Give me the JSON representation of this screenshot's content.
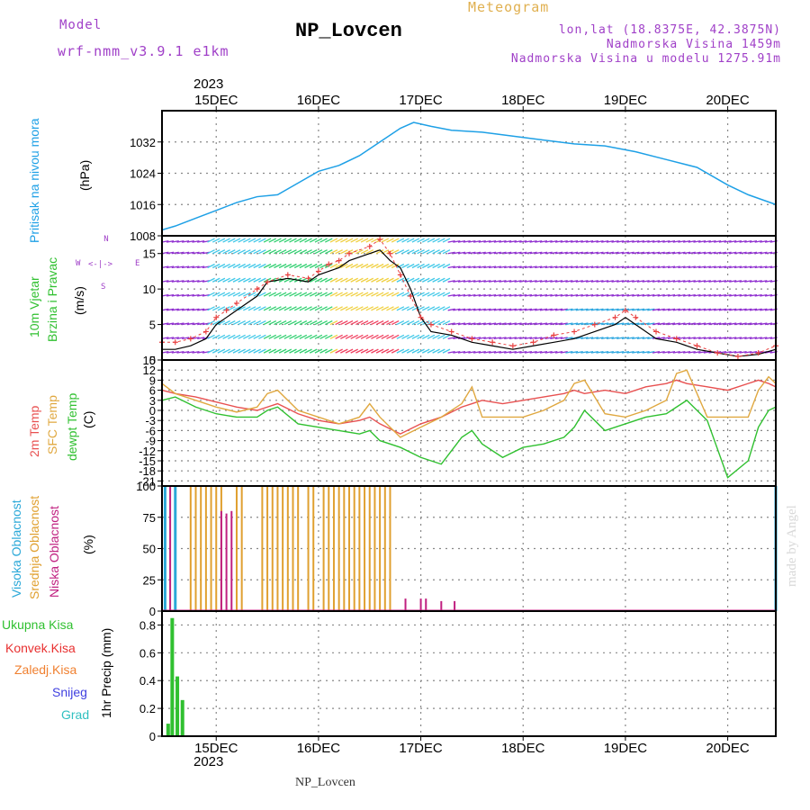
{
  "header": {
    "model_label": "Model",
    "model_name": "wrf-nmm_v3.9.1 e1km",
    "station": "NP_Lovcen",
    "product": "Meteogram",
    "coords": "lon,lat (18.8375E, 42.3875N)",
    "elevation": "Nadmorska Visina 1459m",
    "model_elevation": "Nadmorska Visina u modelu 1275.91m",
    "year_top": "2023",
    "year_bottom": "2023",
    "footer_station": "NP_Lovcen",
    "credit": "made by Angel"
  },
  "labels": {
    "p1_a": "Pritisak na nivou mora",
    "p1_b": "(hPa)",
    "p2_a": "10m Vjetar",
    "p2_b": "Brzina i Pravac",
    "p2_c": "(m/s)",
    "p2_compass_n": "N",
    "p2_compass_s": "S",
    "p2_compass_w": "W",
    "p2_compass_e": "E",
    "p2_compass_mid": "<-|->",
    "p3_a": "2m Temp",
    "p3_b": "SFC Temp",
    "p3_c": "dewpt Temp",
    "p3_d": "(C)",
    "p4_a": "Visoka Oblacnost",
    "p4_b": "Srednja Oblacnost",
    "p4_c": "Niska Oblacnost",
    "p4_d": "(%)",
    "p5_unit": "1hr Precip (mm)",
    "p5_leg1": "Ukupna Kisa",
    "p5_leg2": "Konvek.Kisa",
    "p5_leg3": "Zaledj.Kisa",
    "p5_leg4": "Snijeg",
    "p5_leg5": "Grad"
  },
  "colors": {
    "pressure": "#1ea0e6",
    "temp2m": "#e85050",
    "sfc": "#e0a840",
    "dewpt": "#30c030",
    "high_cloud": "#2aa8d8",
    "mid_cloud": "#e0a030",
    "low_cloud": "#c02080",
    "precip_total": "#30c030",
    "precip_conv": "#e83030",
    "precip_frz": "#f08030",
    "snow": "#4040e0",
    "hail": "#30c0c0",
    "wind_speed": "#000000",
    "gust": "#e84040"
  },
  "chart_data": [
    {
      "type": "line",
      "name": "Sea level pressure",
      "x": [
        14.47,
        14.6,
        14.8,
        15.0,
        15.2,
        15.4,
        15.6,
        15.8,
        16.0,
        16.2,
        16.4,
        16.6,
        16.8,
        16.93,
        17.1,
        17.3,
        17.6,
        17.9,
        18.2,
        18.5,
        18.8,
        19.1,
        19.4,
        19.7,
        20.0,
        20.2,
        20.47
      ],
      "values": [
        1009.5,
        1010.5,
        1012.5,
        1014.5,
        1016.5,
        1018,
        1018.5,
        1021.5,
        1024.5,
        1026,
        1028.5,
        1032,
        1035.5,
        1037,
        1036,
        1035,
        1034.5,
        1033.5,
        1032.5,
        1031.5,
        1031,
        1029.5,
        1027.5,
        1025.5,
        1021,
        1018.5,
        1016
      ],
      "y_ticks": [
        "1008",
        "1016",
        "1024",
        "1032"
      ],
      "ylim": [
        1008,
        1040
      ]
    },
    {
      "type": "line",
      "name": "10m wind",
      "y_ticks": [
        "0",
        "5",
        "10",
        "15"
      ],
      "ylim": [
        0,
        17.5
      ],
      "series": [
        {
          "x": [
            14.47,
            14.6,
            14.75,
            14.9,
            15.0,
            15.1,
            15.2,
            15.4,
            15.5,
            15.7,
            15.9,
            16.0,
            16.1,
            16.2,
            16.3,
            16.5,
            16.6,
            16.7,
            16.8,
            16.9,
            17.0,
            17.1,
            17.3,
            17.5,
            17.7,
            17.9,
            18.1,
            18.3,
            18.5,
            18.7,
            18.9,
            19.0,
            19.1,
            19.3,
            19.5,
            19.7,
            19.9,
            20.1,
            20.3,
            20.47
          ],
          "values": [
            1.5,
            1.5,
            2,
            3,
            5,
            6,
            7,
            9,
            11,
            11.5,
            11,
            12,
            12.5,
            13,
            14,
            15,
            15.5,
            14,
            13,
            10,
            6,
            4,
            3.5,
            2.5,
            2,
            1.5,
            2,
            2.5,
            3,
            4,
            5,
            6,
            5,
            3,
            2.5,
            1.5,
            1,
            0.5,
            0.8,
            1.5
          ]
        },
        {
          "x": [
            14.47,
            14.6,
            14.75,
            14.9,
            15.0,
            15.1,
            15.2,
            15.4,
            15.5,
            15.7,
            15.9,
            16.0,
            16.1,
            16.2,
            16.3,
            16.5,
            16.6,
            16.7,
            16.8,
            16.9,
            17.0,
            17.1,
            17.3,
            17.5,
            17.7,
            17.9,
            18.1,
            18.3,
            18.5,
            18.7,
            18.9,
            19.0,
            19.1,
            19.3,
            19.5,
            19.7,
            19.9,
            20.1,
            20.3,
            20.47
          ],
          "values": [
            2.5,
            2.5,
            3,
            4,
            6,
            7,
            8,
            10,
            11,
            12,
            11.5,
            12.5,
            13.5,
            14,
            15,
            16,
            17,
            15,
            12,
            9,
            6,
            5,
            4,
            3,
            2.5,
            2,
            2.5,
            3.5,
            4,
            5,
            6,
            7,
            6,
            4,
            3,
            2,
            1,
            0.5,
            1,
            2
          ]
        }
      ]
    },
    {
      "type": "line",
      "name": "Temperatures",
      "y_ticks": [
        "15",
        "12",
        "9",
        "6",
        "3",
        "0",
        "-3",
        "-6",
        "-9",
        "-12",
        "-15",
        "-18",
        "-21"
      ],
      "ylim": [
        -22.5,
        15
      ],
      "x": [
        14.47,
        14.6,
        14.8,
        15.0,
        15.2,
        15.4,
        15.5,
        15.6,
        15.8,
        16.0,
        16.2,
        16.4,
        16.5,
        16.6,
        16.8,
        17.0,
        17.2,
        17.4,
        17.5,
        17.6,
        17.8,
        18.0,
        18.2,
        18.4,
        18.5,
        18.6,
        18.8,
        19.0,
        19.2,
        19.4,
        19.5,
        19.6,
        19.8,
        20.0,
        20.2,
        20.3,
        20.4,
        20.47
      ],
      "series": [
        {
          "name": "2m Temp",
          "values": [
            6,
            5,
            4,
            2.5,
            1,
            0,
            1,
            2,
            -1,
            -3,
            -4,
            -3,
            -2,
            -4,
            -7,
            -4,
            -2,
            1,
            2,
            3,
            2,
            3,
            4,
            5,
            6,
            5,
            6,
            5,
            7,
            8,
            9,
            8,
            7,
            6,
            8,
            9,
            8,
            7
          ]
        },
        {
          "name": "SFC Temp",
          "values": [
            8,
            5,
            3,
            1,
            -0.5,
            1,
            5,
            6,
            0,
            -2,
            -4,
            -2,
            2,
            -2,
            -8,
            -5,
            -2,
            2,
            7,
            -2,
            -2,
            -2,
            0,
            3,
            8,
            9,
            -1,
            -2,
            0,
            3,
            11,
            12,
            -2,
            -2,
            -2,
            6,
            10,
            8
          ]
        },
        {
          "name": "dewpt Temp",
          "values": [
            3,
            4,
            1,
            -1,
            -2,
            -2,
            0,
            1,
            -4,
            -5,
            -6,
            -7,
            -6,
            -9,
            -11,
            -14,
            -16,
            -8,
            -6,
            -10,
            -14,
            -11,
            -10,
            -8,
            -5,
            0,
            -6,
            -4,
            -2,
            -1,
            1,
            3,
            -3,
            -20,
            -15,
            -5,
            0,
            1
          ]
        }
      ]
    },
    {
      "type": "bar",
      "name": "Cloud cover",
      "y_ticks": [
        "0",
        "25",
        "50",
        "75",
        "100"
      ],
      "ylim": [
        0,
        100
      ],
      "series": [
        {
          "name": "Srednja Oblacnost",
          "x": [
            14.6,
            14.75,
            14.8,
            14.85,
            14.9,
            14.95,
            15.0,
            15.05,
            15.2,
            15.25,
            15.45,
            15.5,
            15.55,
            15.6,
            15.65,
            15.7,
            15.75,
            15.8,
            15.9,
            15.95,
            16.05,
            16.1,
            16.15,
            16.2,
            16.25,
            16.3,
            16.35,
            16.4,
            16.45,
            16.5,
            16.55,
            16.6,
            16.65,
            16.7
          ],
          "values": [
            100,
            100,
            100,
            100,
            100,
            100,
            100,
            100,
            100,
            100,
            100,
            100,
            100,
            100,
            100,
            100,
            100,
            100,
            100,
            100,
            100,
            100,
            100,
            100,
            100,
            100,
            100,
            100,
            100,
            100,
            100,
            100,
            100,
            100
          ]
        },
        {
          "name": "Niska Oblacnost",
          "x": [
            14.55,
            15.05,
            15.1,
            15.15,
            16.85,
            17.0,
            17.05,
            17.2,
            17.33
          ],
          "values": [
            100,
            80,
            78,
            80,
            10,
            10,
            10,
            8,
            8
          ]
        },
        {
          "name": "Visoka Oblacnost",
          "x": [
            14.5,
            14.6,
            20.47
          ],
          "values": [
            100,
            100,
            100
          ]
        }
      ]
    },
    {
      "type": "bar",
      "name": "1hr Precip",
      "y_ticks": [
        "0",
        "0.2",
        "0.4",
        "0.6",
        "0.8"
      ],
      "ylim": [
        0,
        0.9
      ],
      "x": [
        14.53,
        14.57,
        14.62,
        14.67
      ],
      "values": [
        0.09,
        0.85,
        0.43,
        0.26
      ]
    }
  ],
  "x_axis": {
    "ticks": [
      "15DEC",
      "16DEC",
      "17DEC",
      "18DEC",
      "19DEC",
      "20DEC"
    ],
    "xlim": [
      14.47,
      20.47
    ]
  }
}
